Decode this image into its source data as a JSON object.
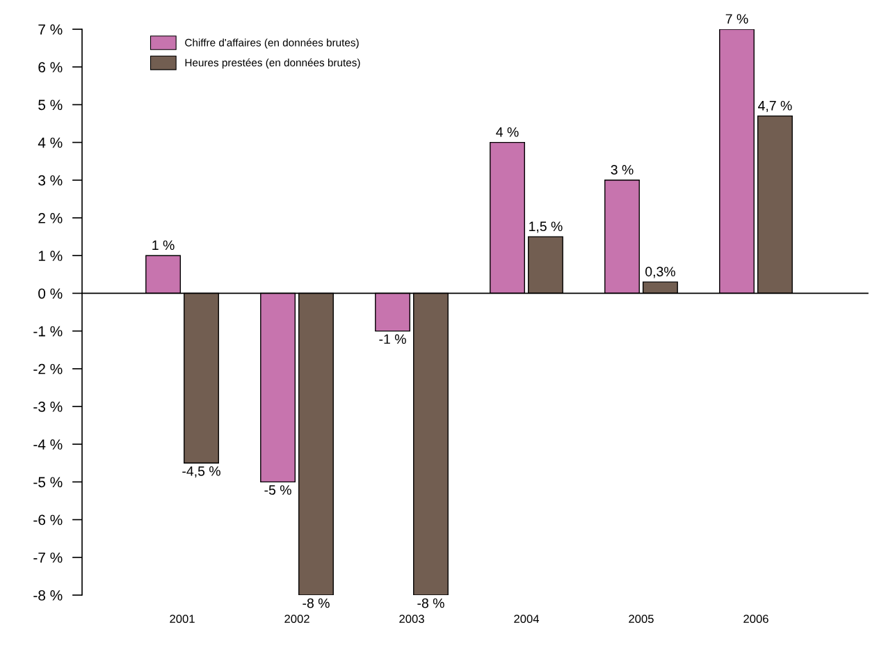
{
  "chart_data": {
    "type": "bar",
    "categories": [
      "2001",
      "2002",
      "2003",
      "2004",
      "2005",
      "2006"
    ],
    "series": [
      {
        "name": "Chiffre d'affaires (en données brutes)",
        "color": "#c774ae",
        "values": [
          1,
          -5,
          -1,
          4,
          3,
          7
        ],
        "value_labels": [
          "1 %",
          "-5 %",
          "-1 %",
          "4 %",
          "3 %",
          "7 %"
        ]
      },
      {
        "name": "Heures prestées (en données brutes)",
        "color": "#725e51",
        "values": [
          -4.5,
          -8,
          -8,
          1.5,
          0.3,
          4.7
        ],
        "value_labels": [
          "-4,5 %",
          "-8 %",
          "-8 %",
          "1,5 %",
          "0,3%",
          "4,7 %"
        ]
      }
    ],
    "ylim": [
      -8,
      7
    ],
    "yticks": [
      {
        "value": -8,
        "label": "-8 %"
      },
      {
        "value": -7,
        "label": "-7 %"
      },
      {
        "value": -6,
        "label": "-6 %"
      },
      {
        "value": -5,
        "label": "-5 %"
      },
      {
        "value": -4,
        "label": "-4 %"
      },
      {
        "value": -3,
        "label": "-3 %"
      },
      {
        "value": -2,
        "label": "-2 %"
      },
      {
        "value": -1,
        "label": "-1 %"
      },
      {
        "value": 0,
        "label": "0 %"
      },
      {
        "value": 1,
        "label": "1 %"
      },
      {
        "value": 2,
        "label": "2 %"
      },
      {
        "value": 3,
        "label": "3 %"
      },
      {
        "value": 4,
        "label": "4 %"
      },
      {
        "value": 5,
        "label": "5 %"
      },
      {
        "value": 6,
        "label": "6 %"
      },
      {
        "value": 7,
        "label": "7 %"
      }
    ],
    "legend": "top left"
  }
}
